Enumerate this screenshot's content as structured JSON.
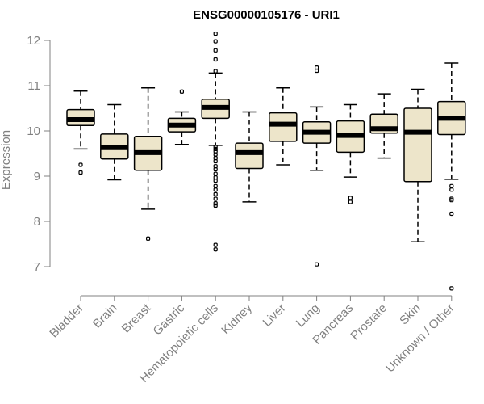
{
  "colors": {
    "box_fill": "#ede5ca",
    "box_stroke": "#000000",
    "axis": "#808080",
    "text_gray": "#808080",
    "title": "#000000"
  },
  "chart_data": {
    "type": "boxplot",
    "title": "ENSG00000105176 - URI1",
    "xlabel": "",
    "ylabel": "Expression",
    "ylim": [
      6.3,
      12.3
    ],
    "yticks": [
      "7",
      "8",
      "9",
      "10",
      "11",
      "12"
    ],
    "categories": [
      "Bladder",
      "Brain",
      "Breast",
      "Gastric",
      "Hematopoietic cells",
      "Kidney",
      "Liver",
      "Lung",
      "Pancreas",
      "Prostate",
      "Skin",
      "Unknown / Other"
    ],
    "boxes": [
      {
        "category": "Bladder",
        "whisker_low": 9.6,
        "q1": 10.12,
        "median": 10.25,
        "q3": 10.47,
        "whisker_high": 10.88,
        "outliers": [
          9.25,
          9.08
        ]
      },
      {
        "category": "Brain",
        "whisker_low": 8.92,
        "q1": 9.38,
        "median": 9.63,
        "q3": 9.93,
        "whisker_high": 10.58,
        "outliers": []
      },
      {
        "category": "Breast",
        "whisker_low": 8.27,
        "q1": 9.13,
        "median": 9.52,
        "q3": 9.88,
        "whisker_high": 10.95,
        "outliers": [
          7.62
        ]
      },
      {
        "category": "Gastric",
        "whisker_low": 9.7,
        "q1": 9.98,
        "median": 10.13,
        "q3": 10.28,
        "whisker_high": 10.42,
        "outliers": [
          10.87
        ]
      },
      {
        "category": "Hematopoietic cells",
        "whisker_low": 9.68,
        "q1": 10.28,
        "median": 10.52,
        "q3": 10.7,
        "whisker_high": 11.28,
        "outliers": [
          12.15,
          11.98,
          11.78,
          11.58,
          11.32,
          9.65,
          9.6,
          9.55,
          9.48,
          9.4,
          9.33,
          9.22,
          9.15,
          9.05,
          8.97,
          8.9,
          8.78,
          8.7,
          8.6,
          8.5,
          8.4,
          8.35,
          7.48,
          7.38
        ]
      },
      {
        "category": "Kidney",
        "whisker_low": 8.43,
        "q1": 9.17,
        "median": 9.52,
        "q3": 9.73,
        "whisker_high": 10.42,
        "outliers": []
      },
      {
        "category": "Liver",
        "whisker_low": 9.25,
        "q1": 9.77,
        "median": 10.15,
        "q3": 10.4,
        "whisker_high": 10.95,
        "outliers": []
      },
      {
        "category": "Lung",
        "whisker_low": 9.13,
        "q1": 9.73,
        "median": 9.97,
        "q3": 10.2,
        "whisker_high": 10.53,
        "outliers": [
          11.4,
          11.33,
          7.05
        ]
      },
      {
        "category": "Pancreas",
        "whisker_low": 8.98,
        "q1": 9.53,
        "median": 9.9,
        "q3": 10.22,
        "whisker_high": 10.58,
        "outliers": [
          8.52,
          8.43
        ]
      },
      {
        "category": "Prostate",
        "whisker_low": 9.4,
        "q1": 9.95,
        "median": 10.05,
        "q3": 10.37,
        "whisker_high": 10.82,
        "outliers": []
      },
      {
        "category": "Skin",
        "whisker_low": 7.55,
        "q1": 8.88,
        "median": 9.97,
        "q3": 10.5,
        "whisker_high": 10.92,
        "outliers": []
      },
      {
        "category": "Unknown / Other",
        "whisker_low": 8.93,
        "q1": 9.92,
        "median": 10.28,
        "q3": 10.65,
        "whisker_high": 11.5,
        "outliers": [
          8.78,
          8.7,
          8.5,
          8.47,
          8.17,
          6.52
        ]
      }
    ]
  }
}
